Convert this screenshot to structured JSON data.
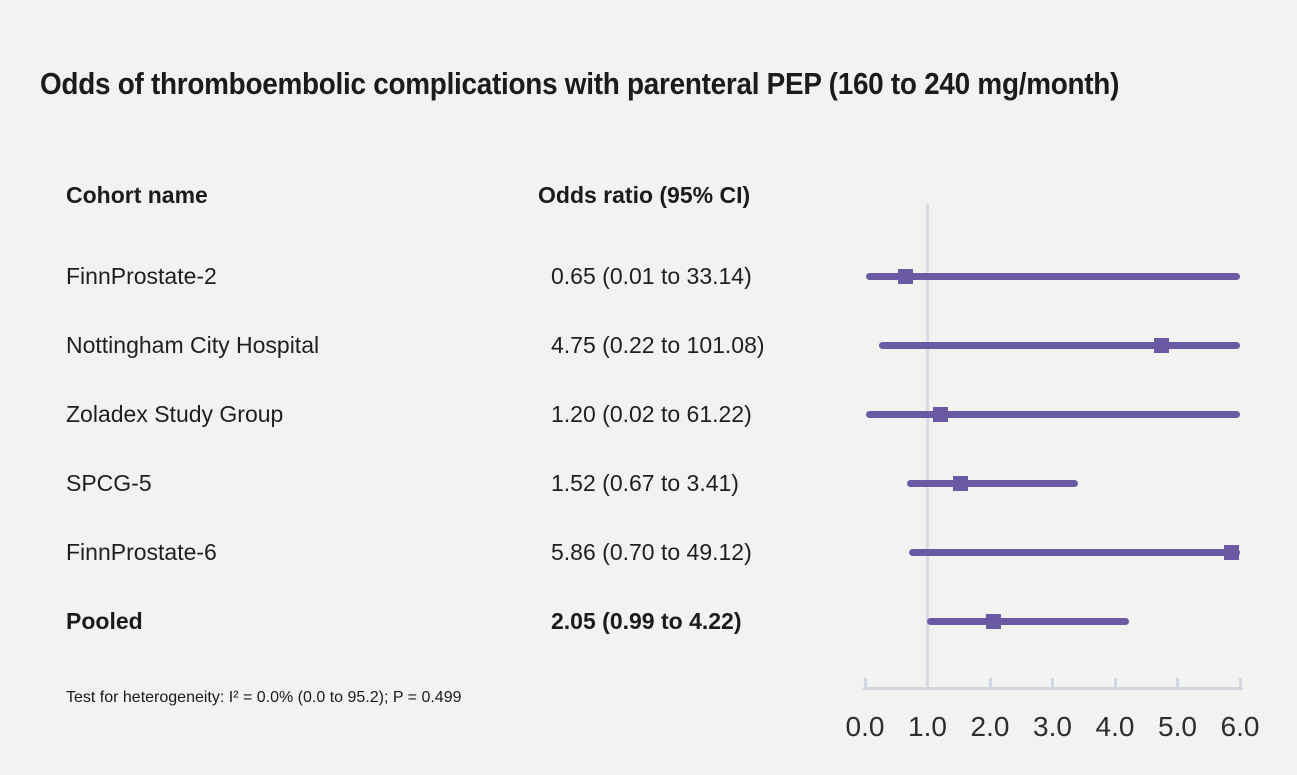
{
  "title": "Odds of thromboembolic complications with parenteral PEP (160 to 240 mg/month)",
  "table": {
    "col1_header": "Cohort name",
    "col2_header": "Odds ratio (95% CI)"
  },
  "footnote": "Test for heterogeneity: I² = 0.0% (0.0 to 95.2); P = 0.499",
  "chart_data": {
    "type": "forest",
    "title": "Odds of thromboembolic complications with parenteral PEP (160 to 240 mg/month)",
    "xlabel": "",
    "ylabel": "",
    "xlim": [
      0.0,
      6.0
    ],
    "x_tick_labels": [
      "0.0",
      "1.0",
      "2.0",
      "3.0",
      "4.0",
      "5.0",
      "6.0"
    ],
    "x_tick_values": [
      0,
      1,
      2,
      3,
      4,
      5,
      6
    ],
    "reference_line_x": 1.0,
    "grid": false,
    "series": [
      {
        "name": "FinnProstate-2",
        "value_label": "0.65 (0.01 to 33.14)",
        "odds_ratio": 0.65,
        "ci_low": 0.01,
        "ci_high": 33.14,
        "bold": false
      },
      {
        "name": "Nottingham City Hospital",
        "value_label": "4.75 (0.22 to 101.08)",
        "odds_ratio": 4.75,
        "ci_low": 0.22,
        "ci_high": 101.08,
        "bold": false
      },
      {
        "name": "Zoladex Study Group",
        "value_label": "1.20 (0.02 to 61.22)",
        "odds_ratio": 1.2,
        "ci_low": 0.02,
        "ci_high": 61.22,
        "bold": false
      },
      {
        "name": "SPCG-5",
        "value_label": "1.52 (0.67 to 3.41)",
        "odds_ratio": 1.52,
        "ci_low": 0.67,
        "ci_high": 3.41,
        "bold": false
      },
      {
        "name": "FinnProstate-6",
        "value_label": "5.86 (0.70 to 49.12)",
        "odds_ratio": 5.86,
        "ci_low": 0.7,
        "ci_high": 49.12,
        "bold": false
      },
      {
        "name": "Pooled",
        "value_label": "2.05 (0.99 to 4.22)",
        "odds_ratio": 2.05,
        "ci_low": 0.99,
        "ci_high": 4.22,
        "bold": true
      }
    ],
    "colors": {
      "background": "#f2f2f1",
      "marker": "#6a5aa4",
      "ci_line": "#6a5aa4",
      "reference_line": "#d8dbe3",
      "axis": "#d3d8e0",
      "text": "#1b1b1b",
      "tick_label": "#2d2d2d"
    }
  }
}
